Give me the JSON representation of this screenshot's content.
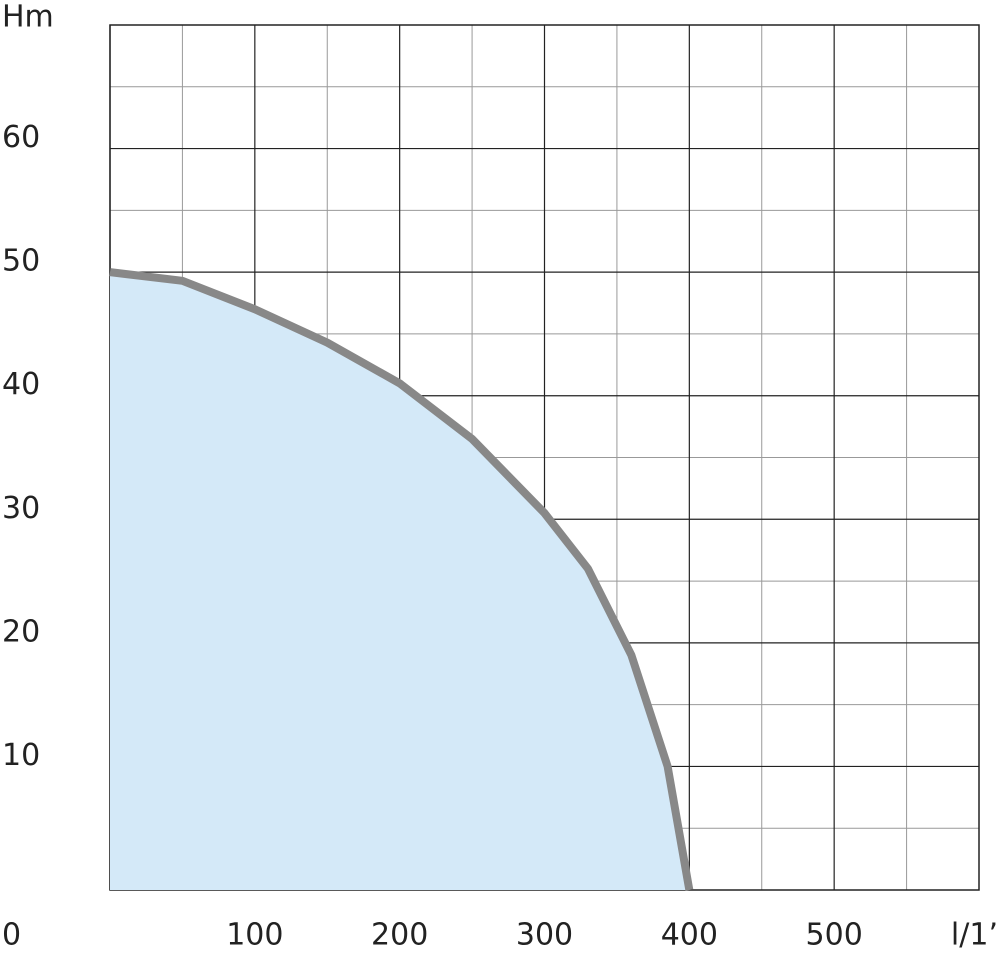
{
  "chart_data": {
    "type": "area_line",
    "y_label": "Hm",
    "x_label": "l/1’",
    "x": [
      0,
      50,
      100,
      150,
      200,
      250,
      300,
      330,
      360,
      385,
      400
    ],
    "series": [
      {
        "name": "curve",
        "color": "#888888",
        "fill": "#d4e9f8",
        "values": [
          50,
          49.3,
          47,
          44.3,
          41,
          36.5,
          30.5,
          26,
          19,
          10,
          0
        ]
      }
    ],
    "xlim": [
      0,
      600
    ],
    "ylim": [
      0,
      70
    ],
    "xticks": [
      0,
      100,
      200,
      300,
      400,
      500
    ],
    "yticks": [
      10,
      20,
      30,
      40,
      50,
      60
    ],
    "x_minor_ticks": [
      50,
      150,
      250,
      350,
      450,
      550
    ],
    "y_minor_ticks": [
      5,
      15,
      25,
      35,
      45,
      55,
      65
    ],
    "grid": true
  }
}
